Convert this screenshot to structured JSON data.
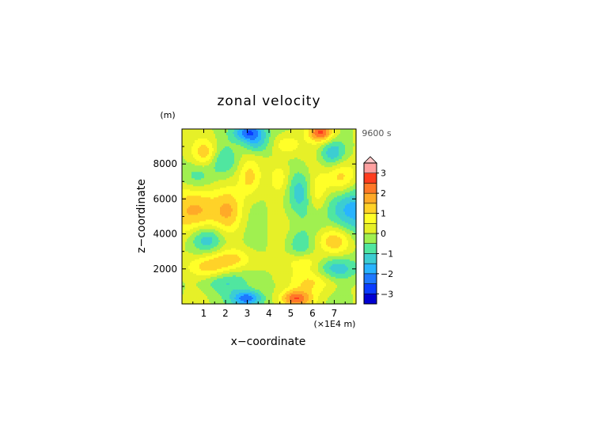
{
  "chart_data": {
    "type": "heatmap",
    "title": "zonal velocity",
    "time_label": "9600 s",
    "y_unit": "(m)",
    "x_unit": "(×1E4 m)",
    "xlabel": "x−coordinate",
    "ylabel": "z−coordinate",
    "xlim": [
      0,
      8
    ],
    "ylim": [
      0,
      10000
    ],
    "x_ticks": [
      1,
      2,
      3,
      4,
      5,
      6,
      7
    ],
    "x_tick_labels": [
      "1",
      "2",
      "3",
      "4",
      "5",
      "6",
      "7"
    ],
    "y_ticks": [
      2000,
      4000,
      6000,
      8000
    ],
    "y_tick_labels": [
      "2000",
      "4000",
      "6000",
      "8000"
    ],
    "colorbar": {
      "levels": [
        -3.5,
        -3,
        -2.5,
        -2,
        -1.5,
        -1,
        -0.5,
        0,
        0.5,
        1,
        1.5,
        2,
        2.5,
        3,
        3.5
      ],
      "colors": [
        "#000a8c",
        "#0000d2",
        "#0a3cff",
        "#1e78ff",
        "#28b4ff",
        "#3ccdd2",
        "#50e6a0",
        "#a0f050",
        "#e6f028",
        "#ffff28",
        "#ffd228",
        "#ffaa28",
        "#ff7828",
        "#ff3c1e",
        "#ffa0a0",
        "#ffc8c8"
      ],
      "tick_values": [
        -3,
        -2,
        -1,
        0,
        1,
        2,
        3
      ],
      "tick_labels": [
        "−3",
        "−2",
        "−1",
        "0",
        "1",
        "2",
        "3"
      ],
      "overflow_triangle": "top"
    },
    "field_features": [
      {
        "x": 3.1,
        "z": 9800,
        "amp": -2.6,
        "sx": 0.5,
        "sz": 380
      },
      {
        "x": 6.4,
        "z": 9800,
        "amp": 2.6,
        "sx": 0.4,
        "sz": 380
      },
      {
        "x": 3.0,
        "z": 300,
        "amp": -2.5,
        "sx": 0.5,
        "sz": 350
      },
      {
        "x": 5.2,
        "z": 300,
        "amp": 2.5,
        "sx": 0.5,
        "sz": 350
      },
      {
        "x": 0.6,
        "z": 5300,
        "amp": 1.8,
        "sx": 0.8,
        "sz": 1000
      },
      {
        "x": 7.7,
        "z": 5400,
        "amp": -1.8,
        "sx": 0.8,
        "sz": 1000
      },
      {
        "x": 1.1,
        "z": 8600,
        "amp": 1.4,
        "sx": 0.4,
        "sz": 550
      },
      {
        "x": 1.8,
        "z": 8200,
        "amp": -0.9,
        "sx": 0.5,
        "sz": 550
      },
      {
        "x": 6.9,
        "z": 8600,
        "amp": -1.3,
        "sx": 0.4,
        "sz": 550
      },
      {
        "x": 7.3,
        "z": 7200,
        "amp": 1.5,
        "sx": 0.5,
        "sz": 700
      },
      {
        "x": 0.7,
        "z": 7300,
        "amp": -1.0,
        "sx": 0.5,
        "sz": 600
      },
      {
        "x": 1.2,
        "z": 3700,
        "amp": -1.5,
        "sx": 0.55,
        "sz": 550
      },
      {
        "x": 7.0,
        "z": 3600,
        "amp": 1.4,
        "sx": 0.55,
        "sz": 550
      },
      {
        "x": 1.3,
        "z": 2100,
        "amp": 1.4,
        "sx": 0.7,
        "sz": 500
      },
      {
        "x": 7.1,
        "z": 2000,
        "amp": -1.4,
        "sx": 0.7,
        "sz": 500
      },
      {
        "x": 2.2,
        "z": 5400,
        "amp": 1.2,
        "sx": 0.45,
        "sz": 900
      },
      {
        "x": 5.4,
        "z": 6400,
        "amp": -1.3,
        "sx": 0.45,
        "sz": 900
      },
      {
        "x": 3.1,
        "z": 7200,
        "amp": 1.1,
        "sx": 0.35,
        "sz": 700
      },
      {
        "x": 4.5,
        "z": 7200,
        "amp": 1.0,
        "sx": 0.35,
        "sz": 700
      },
      {
        "x": 6.2,
        "z": 6300,
        "amp": 1.1,
        "sx": 0.35,
        "sz": 800
      },
      {
        "x": 2.4,
        "z": 2600,
        "amp": 1.0,
        "sx": 0.6,
        "sz": 400
      },
      {
        "x": 5.6,
        "z": 2400,
        "amp": 1.0,
        "sx": 0.6,
        "sz": 400
      },
      {
        "x": 2.0,
        "z": 1300,
        "amp": -1.0,
        "sx": 0.9,
        "sz": 450
      },
      {
        "x": 6.0,
        "z": 1300,
        "amp": 1.0,
        "sx": 0.9,
        "sz": 450
      },
      {
        "x": 5.4,
        "z": 3300,
        "amp": -0.9,
        "sx": 0.4,
        "sz": 600
      },
      {
        "x": 3.4,
        "z": 9100,
        "amp": -1.2,
        "sx": 0.4,
        "sz": 400
      },
      {
        "x": 4.8,
        "z": 9100,
        "amp": 1.1,
        "sx": 0.4,
        "sz": 400
      }
    ]
  }
}
